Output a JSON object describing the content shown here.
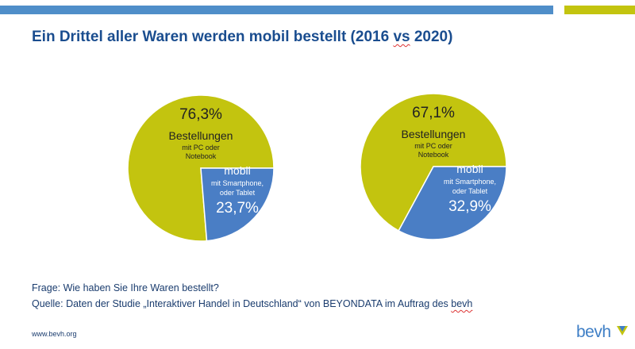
{
  "header": {
    "title_prefix": "Ein Drittel aller Waren werden mobil bestellt (2016 ",
    "title_underlined": "vs",
    "title_suffix": " 2020)"
  },
  "colors": {
    "lime": "#c3c40f",
    "blue": "#4a7ec5",
    "top_bar_blue": "#4f8ec9",
    "title_blue": "#1a4d8f"
  },
  "chart_data": [
    {
      "type": "pie",
      "title": "",
      "slices": [
        {
          "label": "Bestellungen",
          "sublabel": [
            "mit PC oder",
            "Notebook"
          ],
          "value": 76.3,
          "value_label": "76,3%",
          "color": "#c3c40f"
        },
        {
          "label": "mobil",
          "sublabel": [
            "mit Smartphone,",
            "oder Tablet"
          ],
          "value": 23.7,
          "value_label": "23,7%",
          "color": "#4a7ec5"
        }
      ]
    },
    {
      "type": "pie",
      "title": "",
      "slices": [
        {
          "label": "Bestellungen",
          "sublabel": [
            "mit PC oder",
            "Notebook"
          ],
          "value": 67.1,
          "value_label": "67,1%",
          "color": "#c3c40f"
        },
        {
          "label": "mobil",
          "sublabel": [
            "mit Smartphone,",
            "oder Tablet"
          ],
          "value": 32.9,
          "value_label": "32,9%",
          "color": "#4a7ec5"
        }
      ]
    }
  ],
  "footer": {
    "question": "Frage: Wie haben Sie Ihre Waren bestellt?",
    "source_prefix": "Quelle: Daten der Studie „Interaktiver Handel in Deutschland“ von BEYONDATA im Auftrag des ",
    "source_underlined": "bevh",
    "url": "www.bevh.org"
  },
  "logo": {
    "text": "bevh",
    "icon": "bevh-logo-mark-icon"
  }
}
